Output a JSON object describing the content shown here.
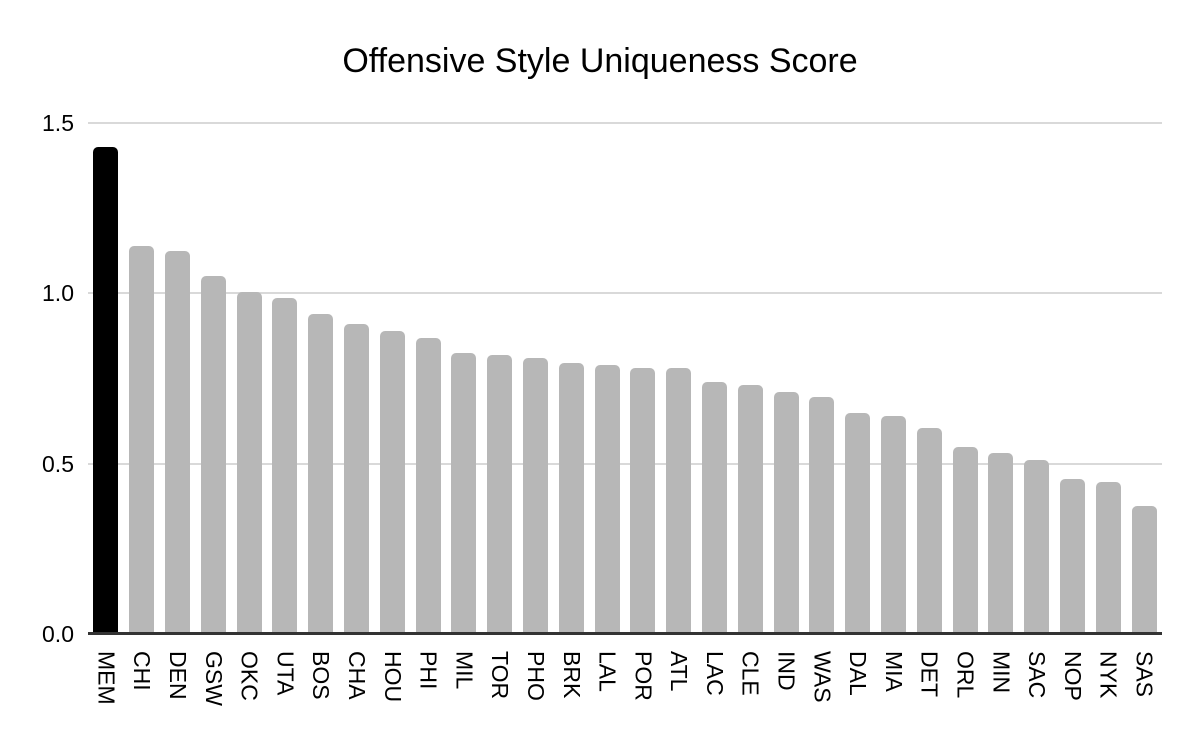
{
  "page": {
    "background": "#ffffff"
  },
  "chart_data": {
    "type": "bar",
    "title": "Offensive Style Uniqueness Score",
    "categories": [
      "MEM",
      "CHI",
      "DEN",
      "GSW",
      "OKC",
      "UTA",
      "BOS",
      "CHA",
      "HOU",
      "PHI",
      "MIL",
      "TOR",
      "PHO",
      "BRK",
      "LAL",
      "POR",
      "ATL",
      "LAC",
      "CLE",
      "IND",
      "WAS",
      "DAL",
      "MIA",
      "DET",
      "ORL",
      "MIN",
      "SAC",
      "NOP",
      "NYK",
      "SAS"
    ],
    "values": [
      1.43,
      1.14,
      1.125,
      1.05,
      1.005,
      0.985,
      0.94,
      0.91,
      0.89,
      0.87,
      0.825,
      0.82,
      0.81,
      0.795,
      0.79,
      0.78,
      0.78,
      0.74,
      0.73,
      0.71,
      0.695,
      0.65,
      0.64,
      0.605,
      0.55,
      0.53,
      0.51,
      0.455,
      0.445,
      0.375
    ],
    "highlight_category": "MEM",
    "xlabel": "",
    "ylabel": "",
    "ylim": [
      0,
      1.5
    ],
    "yticks": [
      0.0,
      0.5,
      1.0,
      1.5
    ],
    "ytick_labels": [
      "0.0",
      "0.5",
      "1.0",
      "1.5"
    ],
    "grid": "horizontal",
    "legend": "none",
    "colors": {
      "bar": "#b7b7b7",
      "highlight": "#000000",
      "gridline": "#d9d9d9",
      "axis": "#333333",
      "text": "#000000"
    }
  }
}
